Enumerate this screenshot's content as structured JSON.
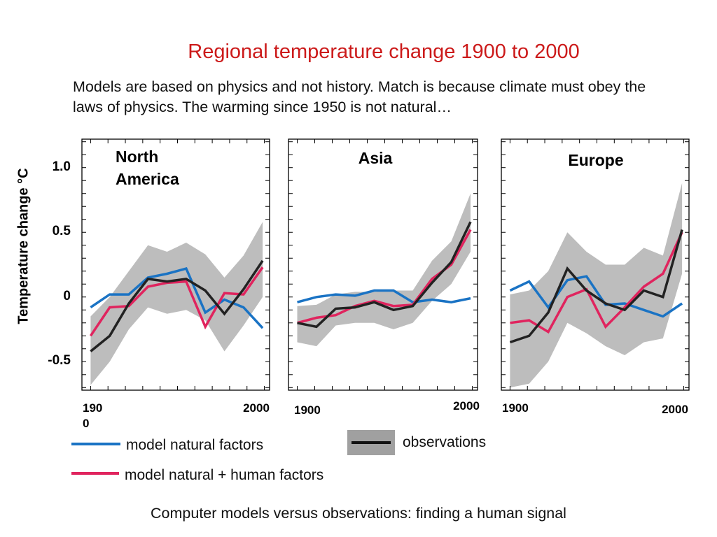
{
  "title": "Regional temperature change 1900 to 2000",
  "subtitle": "Models are based on physics and not history. Match is because climate must obey the laws of physics.  The warming since 1950 is not natural…",
  "caption": "Computer models versus observations: finding a human signal",
  "colors": {
    "title": "#cc1a1a",
    "natural": "#1a73c4",
    "human": "#e0245e",
    "observations": "#222222",
    "band": "#bdbdbd"
  },
  "legend": {
    "natural": "model natural factors",
    "human": "model natural + human factors",
    "observations": "observations"
  },
  "chart_data": {
    "type": "line",
    "ylabel": "Temperature change  °C",
    "yticks": [
      "1.0",
      "0.5",
      "0",
      "-0.5"
    ],
    "ytick_values": [
      1.0,
      0.5,
      0,
      -0.5
    ],
    "ylim": [
      -0.72,
      1.22
    ],
    "xlim": [
      1895,
      2003
    ],
    "panels": [
      {
        "name": "North America",
        "title_lines": [
          "North",
          "America"
        ],
        "xtick_labels": [
          "190\n0",
          "2000"
        ],
        "x": [
          1900,
          1911,
          1922,
          1933,
          1944,
          1955,
          1966,
          1977,
          1988,
          1999
        ],
        "band_upper": [
          -0.15,
          0.0,
          0.2,
          0.4,
          0.35,
          0.42,
          0.33,
          0.15,
          0.32,
          0.58
        ],
        "band_lower": [
          -0.68,
          -0.5,
          -0.25,
          -0.08,
          -0.13,
          -0.1,
          -0.18,
          -0.42,
          -0.22,
          0.0
        ],
        "series": [
          {
            "name": "model natural factors",
            "key": "natural",
            "values": [
              -0.08,
              0.02,
              0.02,
              0.15,
              0.18,
              0.22,
              -0.12,
              -0.02,
              -0.08,
              -0.24
            ]
          },
          {
            "name": "model natural + human factors",
            "key": "human",
            "values": [
              -0.3,
              -0.08,
              -0.07,
              0.08,
              0.11,
              0.12,
              -0.23,
              0.03,
              0.02,
              0.23
            ]
          },
          {
            "name": "observations",
            "key": "observations",
            "values": [
              -0.42,
              -0.3,
              -0.05,
              0.14,
              0.12,
              0.14,
              0.05,
              -0.13,
              0.06,
              0.28
            ]
          }
        ]
      },
      {
        "name": "Asia",
        "title_lines": [
          "Asia"
        ],
        "xtick_labels": [
          "1900",
          "2000"
        ],
        "x": [
          1900,
          1911,
          1922,
          1933,
          1944,
          1955,
          1966,
          1977,
          1988,
          1999
        ],
        "band_upper": [
          -0.07,
          -0.06,
          0.02,
          0.04,
          0.04,
          0.05,
          0.05,
          0.28,
          0.43,
          0.8
        ],
        "band_lower": [
          -0.35,
          -0.38,
          -0.22,
          -0.2,
          -0.2,
          -0.25,
          -0.2,
          -0.03,
          0.1,
          0.35
        ],
        "series": [
          {
            "name": "model natural factors",
            "key": "natural",
            "values": [
              -0.04,
              0.0,
              0.02,
              0.01,
              0.05,
              0.05,
              -0.04,
              -0.02,
              -0.04,
              -0.01
            ]
          },
          {
            "name": "model natural + human factors",
            "key": "human",
            "values": [
              -0.2,
              -0.16,
              -0.14,
              -0.07,
              -0.03,
              -0.07,
              -0.06,
              0.14,
              0.25,
              0.52
            ]
          },
          {
            "name": "observations",
            "key": "observations",
            "values": [
              -0.2,
              -0.23,
              -0.09,
              -0.08,
              -0.04,
              -0.1,
              -0.07,
              0.11,
              0.27,
              0.58
            ]
          }
        ]
      },
      {
        "name": "Europe",
        "title_lines": [
          "Europe"
        ],
        "xtick_labels": [
          "1900",
          "2000"
        ],
        "x": [
          1900,
          1911,
          1922,
          1933,
          1944,
          1955,
          1966,
          1977,
          1988,
          1999
        ],
        "band_upper": [
          0.02,
          0.05,
          0.2,
          0.5,
          0.35,
          0.25,
          0.25,
          0.38,
          0.32,
          0.88
        ],
        "band_lower": [
          -0.7,
          -0.67,
          -0.5,
          -0.2,
          -0.28,
          -0.38,
          -0.45,
          -0.35,
          -0.32,
          0.18
        ],
        "series": [
          {
            "name": "model natural factors",
            "key": "natural",
            "values": [
              0.05,
              0.12,
              -0.08,
              0.13,
              0.16,
              -0.06,
              -0.05,
              -0.1,
              -0.15,
              -0.05
            ]
          },
          {
            "name": "model natural + human factors",
            "key": "human",
            "values": [
              -0.2,
              -0.18,
              -0.27,
              0.0,
              0.06,
              -0.23,
              -0.08,
              0.08,
              0.18,
              0.5
            ]
          },
          {
            "name": "observations",
            "key": "observations",
            "values": [
              -0.35,
              -0.3,
              -0.12,
              0.22,
              0.05,
              -0.05,
              -0.1,
              0.05,
              0.0,
              0.52
            ]
          }
        ]
      }
    ]
  }
}
